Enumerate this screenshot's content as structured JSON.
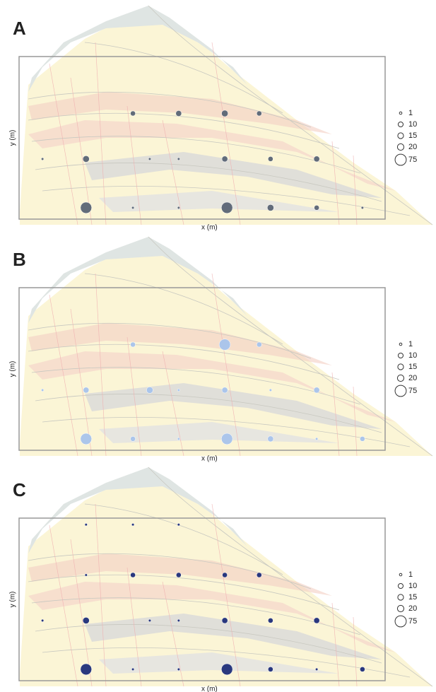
{
  "chart_data": [
    {
      "type": "bubble",
      "title": "A",
      "x_label": "x (m)",
      "y_label": "y (m)",
      "color": "#5a6575",
      "x": [
        31.1,
        43.6,
        56.2,
        65.6,
        6.4,
        18.3,
        35.7,
        43.6,
        56.2,
        68.7,
        81.3,
        18.3,
        31.1,
        43.6,
        56.8,
        68.7,
        81.3,
        93.8
      ],
      "y": [
        65,
        65,
        65,
        65,
        37,
        37,
        37,
        37,
        37,
        37,
        37,
        7,
        7,
        7,
        7,
        7,
        7,
        7
      ],
      "sizes": [
        10,
        15,
        20,
        10,
        1,
        20,
        1,
        1,
        15,
        10,
        15,
        75,
        1,
        1,
        75,
        20,
        10,
        1
      ],
      "legend_sizes": [
        1,
        10,
        15,
        20,
        75
      ]
    },
    {
      "type": "bubble",
      "title": "B",
      "x_label": "x (m)",
      "y_label": "y (m)",
      "color": "#a8c4ec",
      "x": [
        31.1,
        56.2,
        65.6,
        6.4,
        18.3,
        35.7,
        43.6,
        56.2,
        68.7,
        81.3,
        18.3,
        31.1,
        43.6,
        56.8,
        68.7,
        81.3,
        93.8
      ],
      "y": [
        65,
        65,
        65,
        37,
        37,
        37,
        37,
        37,
        37,
        37,
        7,
        7,
        7,
        7,
        7,
        7,
        7
      ],
      "sizes": [
        10,
        75,
        10,
        1,
        15,
        20,
        1,
        15,
        1,
        15,
        75,
        10,
        1,
        75,
        15,
        1,
        10
      ],
      "legend_sizes": [
        1,
        10,
        15,
        20,
        75
      ]
    },
    {
      "type": "bubble",
      "title": "C",
      "x_label": "x (m)",
      "y_label": "y (m)",
      "color": "#1f2f7a",
      "x": [
        18.3,
        31.1,
        43.6,
        18.3,
        31.1,
        43.6,
        56.2,
        65.6,
        6.4,
        18.3,
        35.7,
        43.6,
        56.2,
        68.7,
        81.3,
        18.3,
        31.1,
        43.6,
        56.8,
        68.7,
        81.3,
        93.8
      ],
      "y": [
        96,
        96,
        96,
        65,
        65,
        65,
        65,
        65,
        37,
        37,
        37,
        37,
        37,
        37,
        37,
        7,
        7,
        7,
        7,
        7,
        7,
        7
      ],
      "sizes": [
        1,
        1,
        1,
        1,
        10,
        10,
        10,
        10,
        1,
        20,
        1,
        1,
        15,
        10,
        15,
        75,
        1,
        1,
        75,
        10,
        1,
        10
      ],
      "legend_sizes": [
        1,
        10,
        15,
        20,
        75
      ]
    }
  ]
}
